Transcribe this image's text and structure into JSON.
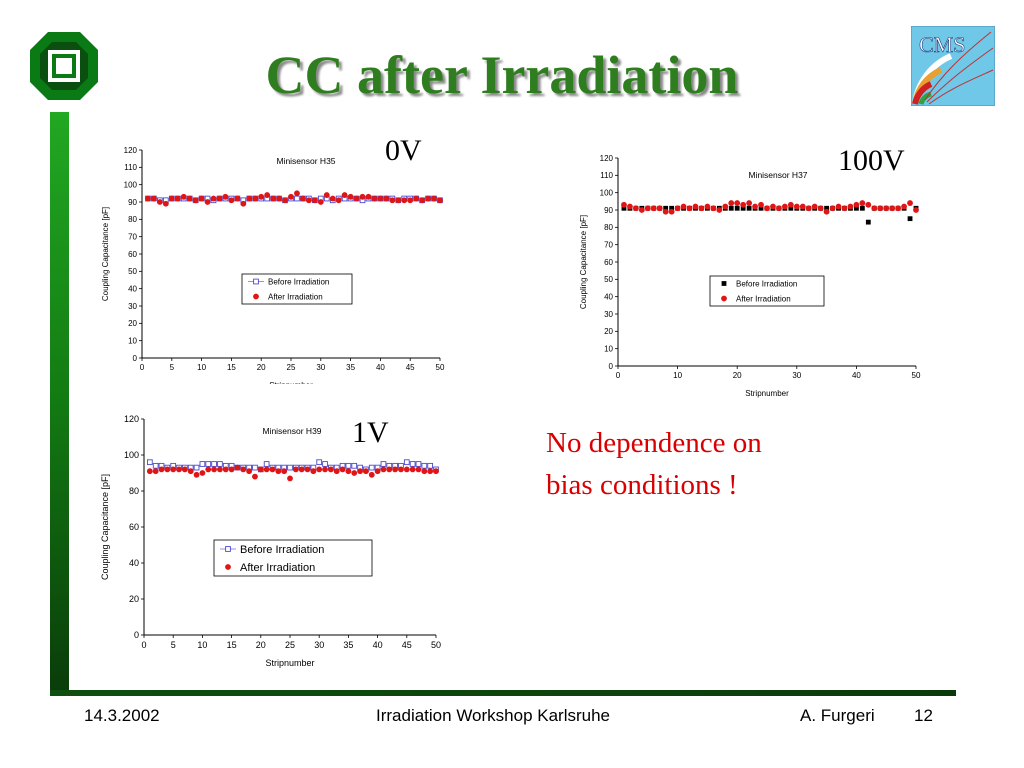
{
  "slide": {
    "title": "CC after Irradiation",
    "note_line1": "No dependence on",
    "note_line2": "bias conditions !",
    "colors": {
      "title": "#2e7d1e",
      "note": "#d80000",
      "bar": "#1a8f1a"
    }
  },
  "logos": {
    "left": "karlsruhe-logo",
    "right": "CMS"
  },
  "footer": {
    "date": "14.3.2002",
    "event": "Irradiation Workshop Karlsruhe",
    "author": "A. Furgeri",
    "page": "12"
  },
  "chart_data": [
    {
      "id": "h35",
      "type": "scatter",
      "voltage": "0V",
      "title": "Minisensor H35",
      "xlabel": "Stripnumber",
      "ylabel": "Coupling Capacitance [pF]",
      "xlim": [
        0,
        50
      ],
      "ylim": [
        0,
        120
      ],
      "xticks": [
        0,
        5,
        10,
        15,
        20,
        25,
        30,
        35,
        40,
        45,
        50
      ],
      "yticks": [
        0,
        10,
        20,
        30,
        40,
        50,
        60,
        70,
        80,
        90,
        100,
        110,
        120
      ],
      "legend_position": "center-right",
      "series": [
        {
          "name": "Before Irradiation",
          "marker": "open-square",
          "color": "#4a4ad0",
          "x": [
            1,
            2,
            3,
            4,
            5,
            6,
            7,
            8,
            9,
            10,
            11,
            12,
            13,
            14,
            15,
            16,
            17,
            18,
            19,
            20,
            21,
            22,
            23,
            24,
            25,
            26,
            27,
            28,
            29,
            30,
            31,
            32,
            33,
            34,
            35,
            36,
            37,
            38,
            39,
            40,
            41,
            42,
            43,
            44,
            45,
            46,
            47,
            48,
            49,
            50
          ],
          "y": [
            92,
            92,
            91,
            91,
            92,
            92,
            92,
            92,
            91,
            92,
            92,
            91,
            92,
            92,
            92,
            92,
            91,
            92,
            92,
            92,
            92,
            92,
            92,
            91,
            92,
            92,
            92,
            92,
            91,
            92,
            92,
            91,
            92,
            92,
            92,
            92,
            91,
            92,
            92,
            92,
            92,
            92,
            91,
            92,
            92,
            92,
            91,
            92,
            92,
            91
          ]
        },
        {
          "name": "After Irradiation",
          "marker": "filled-circle",
          "color": "#e01515",
          "x": [
            1,
            2,
            3,
            4,
            5,
            6,
            7,
            8,
            9,
            10,
            11,
            12,
            13,
            14,
            15,
            16,
            17,
            18,
            19,
            20,
            21,
            22,
            23,
            24,
            25,
            26,
            27,
            28,
            29,
            30,
            31,
            32,
            33,
            34,
            35,
            36,
            37,
            38,
            39,
            40,
            41,
            42,
            43,
            44,
            45,
            46,
            47,
            48,
            49,
            50
          ],
          "y": [
            92,
            92,
            90,
            89,
            92,
            92,
            93,
            92,
            91,
            92,
            90,
            92,
            92,
            93,
            91,
            92,
            89,
            92,
            92,
            93,
            94,
            92,
            92,
            91,
            93,
            95,
            92,
            91,
            91,
            90,
            94,
            92,
            91,
            94,
            93,
            92,
            93,
            93,
            92,
            92,
            92,
            91,
            91,
            91,
            91,
            92,
            91,
            92,
            92,
            91
          ]
        }
      ]
    },
    {
      "id": "h37",
      "type": "scatter",
      "voltage": "100V",
      "title": "Minisensor H37",
      "xlabel": "Stripnumber",
      "ylabel": "Coupling Capacitance [pF]",
      "xlim": [
        0,
        50
      ],
      "ylim": [
        0,
        120
      ],
      "xticks": [
        0,
        10,
        20,
        30,
        40,
        50
      ],
      "yticks": [
        0,
        10,
        20,
        30,
        40,
        50,
        60,
        70,
        80,
        90,
        100,
        110,
        120
      ],
      "legend_position": "center-right",
      "series": [
        {
          "name": "Before Irradiation",
          "marker": "filled-square",
          "color": "#000000",
          "x": [
            1,
            2,
            3,
            4,
            5,
            6,
            7,
            8,
            9,
            10,
            11,
            12,
            13,
            14,
            15,
            16,
            17,
            18,
            19,
            20,
            21,
            22,
            23,
            24,
            25,
            26,
            27,
            28,
            29,
            30,
            31,
            32,
            33,
            34,
            35,
            36,
            37,
            38,
            39,
            40,
            41,
            42,
            43,
            44,
            45,
            46,
            47,
            48,
            49,
            50
          ],
          "y": [
            91,
            91,
            91,
            91,
            91,
            91,
            91,
            91,
            91,
            91,
            91,
            91,
            91,
            91,
            91,
            91,
            91,
            91,
            91,
            91,
            91,
            91,
            91,
            91,
            91,
            91,
            91,
            91,
            91,
            91,
            91,
            91,
            91,
            91,
            91,
            91,
            91,
            91,
            91,
            91,
            91,
            83,
            91,
            91,
            91,
            91,
            91,
            91,
            85,
            91
          ]
        },
        {
          "name": "After Irradiation",
          "marker": "filled-circle",
          "color": "#e01515",
          "x": [
            1,
            2,
            3,
            4,
            5,
            6,
            7,
            8,
            9,
            10,
            11,
            12,
            13,
            14,
            15,
            16,
            17,
            18,
            19,
            20,
            21,
            22,
            23,
            24,
            25,
            26,
            27,
            28,
            29,
            30,
            31,
            32,
            33,
            34,
            35,
            36,
            37,
            38,
            39,
            40,
            41,
            42,
            43,
            44,
            45,
            46,
            47,
            48,
            49,
            50
          ],
          "y": [
            93,
            92,
            91,
            90,
            91,
            91,
            91,
            89,
            89,
            91,
            92,
            91,
            92,
            91,
            92,
            91,
            90,
            92,
            94,
            94,
            93,
            94,
            92,
            93,
            91,
            92,
            91,
            92,
            93,
            92,
            92,
            91,
            92,
            91,
            89,
            91,
            92,
            91,
            92,
            93,
            94,
            93,
            91,
            91,
            91,
            91,
            91,
            92,
            94,
            90
          ]
        }
      ]
    },
    {
      "id": "h39",
      "type": "scatter",
      "voltage": "1V",
      "title": "Minisensor H39",
      "xlabel": "Stripnumber",
      "ylabel": "Coupling Capacitance [pF]",
      "xlim": [
        0,
        50
      ],
      "ylim": [
        0,
        120
      ],
      "xticks": [
        0,
        5,
        10,
        15,
        20,
        25,
        30,
        35,
        40,
        45,
        50
      ],
      "yticks": [
        0,
        20,
        40,
        60,
        80,
        100,
        120
      ],
      "legend_position": "center-left",
      "series": [
        {
          "name": "Before Irradiation",
          "marker": "open-square",
          "color": "#4a4ad0",
          "x": [
            1,
            2,
            3,
            4,
            5,
            6,
            7,
            8,
            9,
            10,
            11,
            12,
            13,
            14,
            15,
            16,
            17,
            18,
            19,
            20,
            21,
            22,
            23,
            24,
            25,
            26,
            27,
            28,
            29,
            30,
            31,
            32,
            33,
            34,
            35,
            36,
            37,
            38,
            39,
            40,
            41,
            42,
            43,
            44,
            45,
            46,
            47,
            48,
            49,
            50
          ],
          "y": [
            96,
            94,
            94,
            93,
            94,
            93,
            93,
            93,
            93,
            95,
            95,
            95,
            95,
            94,
            94,
            93,
            93,
            93,
            93,
            92,
            95,
            93,
            93,
            93,
            93,
            93,
            93,
            93,
            93,
            96,
            95,
            93,
            93,
            94,
            94,
            94,
            93,
            92,
            93,
            93,
            95,
            94,
            94,
            94,
            96,
            95,
            95,
            94,
            94,
            92
          ]
        },
        {
          "name": "After Irradiation",
          "marker": "filled-circle",
          "color": "#e01515",
          "x": [
            1,
            2,
            3,
            4,
            5,
            6,
            7,
            8,
            9,
            10,
            11,
            12,
            13,
            14,
            15,
            16,
            17,
            18,
            19,
            20,
            21,
            22,
            23,
            24,
            25,
            26,
            27,
            28,
            29,
            30,
            31,
            32,
            33,
            34,
            35,
            36,
            37,
            38,
            39,
            40,
            41,
            42,
            43,
            44,
            45,
            46,
            47,
            48,
            49,
            50
          ],
          "y": [
            91,
            91,
            92,
            92,
            92,
            92,
            92,
            91,
            89,
            90,
            92,
            92,
            92,
            92,
            92,
            93,
            92,
            91,
            88,
            92,
            92,
            92,
            91,
            91,
            87,
            92,
            92,
            92,
            91,
            92,
            92,
            92,
            91,
            92,
            91,
            90,
            91,
            91,
            89,
            91,
            92,
            92,
            92,
            92,
            92,
            92,
            92,
            91,
            91,
            91
          ]
        }
      ]
    }
  ]
}
